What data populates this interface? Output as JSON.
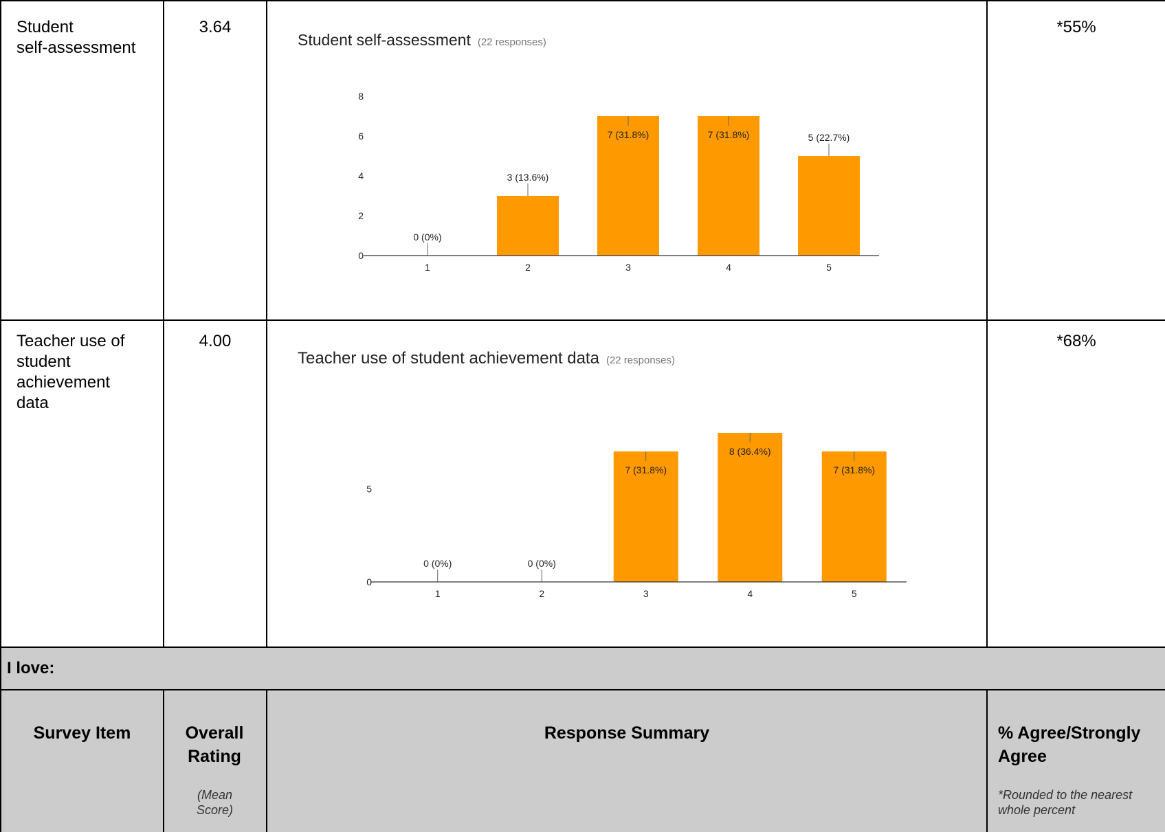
{
  "rows": [
    {
      "item": "Student self-assessment",
      "item_lines": [
        "Student",
        "self-assessment"
      ],
      "rating": "3.64",
      "agree": "*55%"
    },
    {
      "item": "Teacher use of student achievement data",
      "item_lines": [
        "Teacher use of",
        "student",
        "achievement",
        "data"
      ],
      "rating": "4.00",
      "agree": "*68%"
    }
  ],
  "section_label": "I love:",
  "header": {
    "survey_item": "Survey Item",
    "overall_rating": "Overall Rating",
    "mean_score": "(Mean Score)",
    "response_summary": "Response Summary",
    "agree": "% Agree/Strongly Agree",
    "rounding_note": "*Rounded to the nearest whole percent"
  },
  "colors": {
    "bar": "#ff9900",
    "axis": "#333333",
    "header_bg": "#cccccc"
  },
  "chart_data": [
    {
      "type": "bar",
      "title": "Student self-assessment",
      "subtitle": "(22 responses)",
      "categories": [
        "1",
        "2",
        "3",
        "4",
        "5"
      ],
      "values": [
        0,
        3,
        7,
        7,
        5
      ],
      "labels": [
        "0 (0%)",
        "3 (13.6%)",
        "7 (31.8%)",
        "7 (31.8%)",
        "5 (22.7%)"
      ],
      "yticks": [
        0,
        2,
        4,
        6,
        8
      ],
      "ylim": [
        0,
        8
      ]
    },
    {
      "type": "bar",
      "title": "Teacher use of student achievement data",
      "subtitle": "(22 responses)",
      "categories": [
        "1",
        "2",
        "3",
        "4",
        "5"
      ],
      "values": [
        0,
        0,
        7,
        8,
        7
      ],
      "labels": [
        "0 (0%)",
        "0 (0%)",
        "7 (31.8%)",
        "8 (36.4%)",
        "7 (31.8%)"
      ],
      "yticks": [
        0,
        5
      ],
      "ylim": [
        0,
        8
      ]
    }
  ]
}
